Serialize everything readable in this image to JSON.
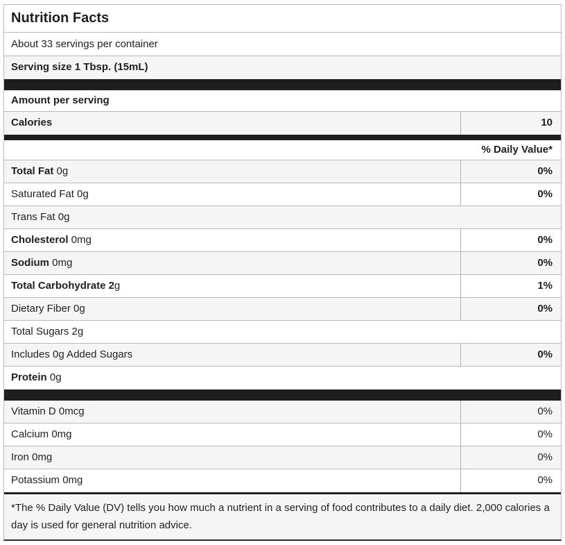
{
  "label": {
    "title": "Nutrition Facts",
    "servings_per_container": "About 33 servings per container",
    "serving_size": "Serving size 1 Tbsp. (15mL)",
    "amount_per_serving": "Amount per serving",
    "calories": {
      "label": "Calories",
      "value": "10"
    },
    "daily_value_header": "% Daily Value*",
    "nutrients": [
      {
        "bold": "Total Fat",
        "rest": " 0g",
        "dv": "0%",
        "dv_bold": true,
        "shaded": true,
        "divider": true
      },
      {
        "bold": "",
        "rest": "Saturated Fat 0g",
        "dv": "0%",
        "dv_bold": true,
        "shaded": false,
        "divider": true
      },
      {
        "bold": "",
        "rest": "Trans Fat 0g",
        "dv": "",
        "dv_bold": false,
        "shaded": true,
        "divider": false
      },
      {
        "bold": "Cholesterol",
        "rest": " 0mg",
        "dv": "0%",
        "dv_bold": true,
        "shaded": false,
        "divider": true
      },
      {
        "bold": "Sodium",
        "rest": " 0mg",
        "dv": "0%",
        "dv_bold": true,
        "shaded": true,
        "divider": true
      },
      {
        "bold": "Total Carbohydrate 2",
        "rest": "g",
        "dv": "1%",
        "dv_bold": true,
        "shaded": false,
        "divider": true
      },
      {
        "bold": "",
        "rest": "Dietary Fiber 0g",
        "dv": "0%",
        "dv_bold": true,
        "shaded": true,
        "divider": true
      },
      {
        "bold": "",
        "rest": "Total Sugars 2g",
        "dv": "",
        "dv_bold": false,
        "shaded": false,
        "divider": false
      },
      {
        "bold": "",
        "rest": "Includes 0g Added Sugars",
        "dv": "0%",
        "dv_bold": true,
        "shaded": true,
        "divider": true
      },
      {
        "bold": "Protein",
        "rest": " 0g",
        "dv": "",
        "dv_bold": false,
        "shaded": false,
        "divider": false,
        "last": true
      }
    ],
    "vitamins": [
      {
        "label": "Vitamin D 0mcg",
        "dv": "0%",
        "shaded": true
      },
      {
        "label": "Calcium 0mg",
        "dv": "0%",
        "shaded": false
      },
      {
        "label": "Iron 0mg",
        "dv": "0%",
        "shaded": true
      },
      {
        "label": "Potassium 0mg",
        "dv": "0%",
        "shaded": false,
        "last": true
      }
    ],
    "footnote": "*The % Daily Value (DV) tells you how much a nutrient in a serving of food contributes to a daily diet. 2,000 calories a day is used for general nutrition advice."
  },
  "colors": {
    "bar": "#1e1e1e",
    "stripe": "#f5f5f5",
    "border": "#b9b9b9",
    "divider": "#b0b0b0",
    "text": "#1f1f1f"
  }
}
